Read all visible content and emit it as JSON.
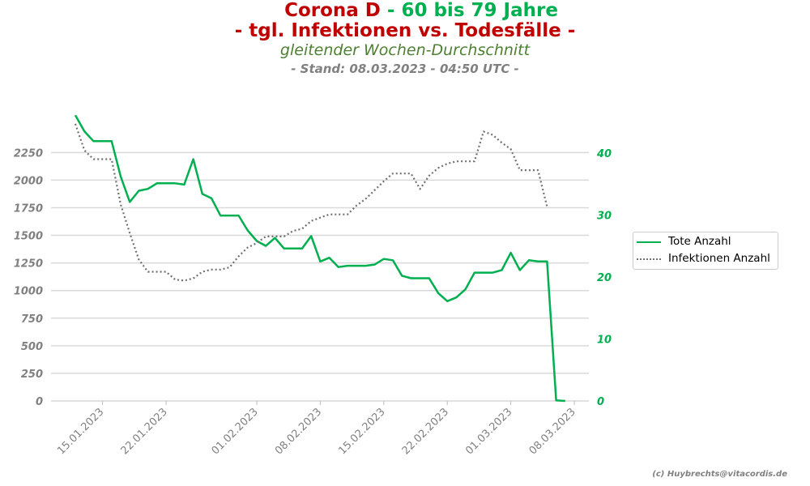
{
  "title": {
    "line1_a": "Corona D",
    "line1_b": " - 60 bis 79 Jahre",
    "line2": "- tgl. Infektionen vs. Todesfälle -",
    "subtitle": "gleitender Wochen-Durchschnitt",
    "stand": "- Stand: 08.03.2023 - 04:50 UTC -"
  },
  "copyright": "(c) Huybrechts@vitacordis.de",
  "colors": {
    "deaths": "#00b050",
    "infections": "#707070",
    "left_axis": "#808080",
    "right_axis": "#00b050",
    "grid": "#d9d9d9"
  },
  "chart_data": {
    "type": "line",
    "x_start": "12.01.2023",
    "x_ticks": [
      "15.01.2023",
      "22.01.2023",
      "01.02.2023",
      "08.02.2023",
      "15.02.2023",
      "22.02.2023",
      "01.03.2023",
      "08.03.2023"
    ],
    "y_left": {
      "ticks": [
        0,
        250,
        500,
        750,
        1000,
        1250,
        1500,
        1750,
        2000,
        2250
      ],
      "range": [
        0,
        2600
      ]
    },
    "y_right": {
      "ticks": [
        0,
        10,
        20,
        30,
        40
      ],
      "range": [
        0,
        46.4
      ]
    },
    "legend_position": "right",
    "grid": true,
    "series": [
      {
        "name": "Tote Anzahl",
        "axis": "right",
        "style": "solid",
        "values": [
          46.1,
          43.5,
          41.9,
          41.9,
          41.9,
          36.2,
          32.1,
          33.9,
          34.2,
          35.1,
          35.1,
          35.1,
          34.9,
          39.0,
          33.4,
          32.7,
          29.9,
          29.9,
          29.9,
          27.5,
          25.8,
          25.0,
          26.3,
          24.6,
          24.6,
          24.6,
          26.6,
          22.5,
          23.1,
          21.6,
          21.8,
          21.8,
          21.8,
          22.0,
          22.9,
          22.7,
          20.2,
          19.8,
          19.8,
          19.8,
          17.4,
          16.1,
          16.7,
          18.0,
          20.7,
          20.7,
          20.7,
          21.1,
          23.9,
          21.1,
          22.7,
          22.5,
          22.5,
          0.1,
          0.0
        ]
      },
      {
        "name": "Infektionen Anzahl",
        "axis": "left",
        "style": "dotted",
        "values": [
          2510,
          2270,
          2190,
          2190,
          2190,
          1780,
          1520,
          1280,
          1170,
          1170,
          1170,
          1100,
          1090,
          1110,
          1170,
          1190,
          1190,
          1210,
          1310,
          1390,
          1430,
          1490,
          1490,
          1490,
          1540,
          1560,
          1630,
          1660,
          1690,
          1690,
          1690,
          1770,
          1830,
          1910,
          1990,
          2060,
          2060,
          2060,
          1920,
          2040,
          2110,
          2150,
          2170,
          2170,
          2170,
          2440,
          2410,
          2340,
          2280,
          2090,
          2090,
          2090,
          1760
        ]
      }
    ]
  }
}
